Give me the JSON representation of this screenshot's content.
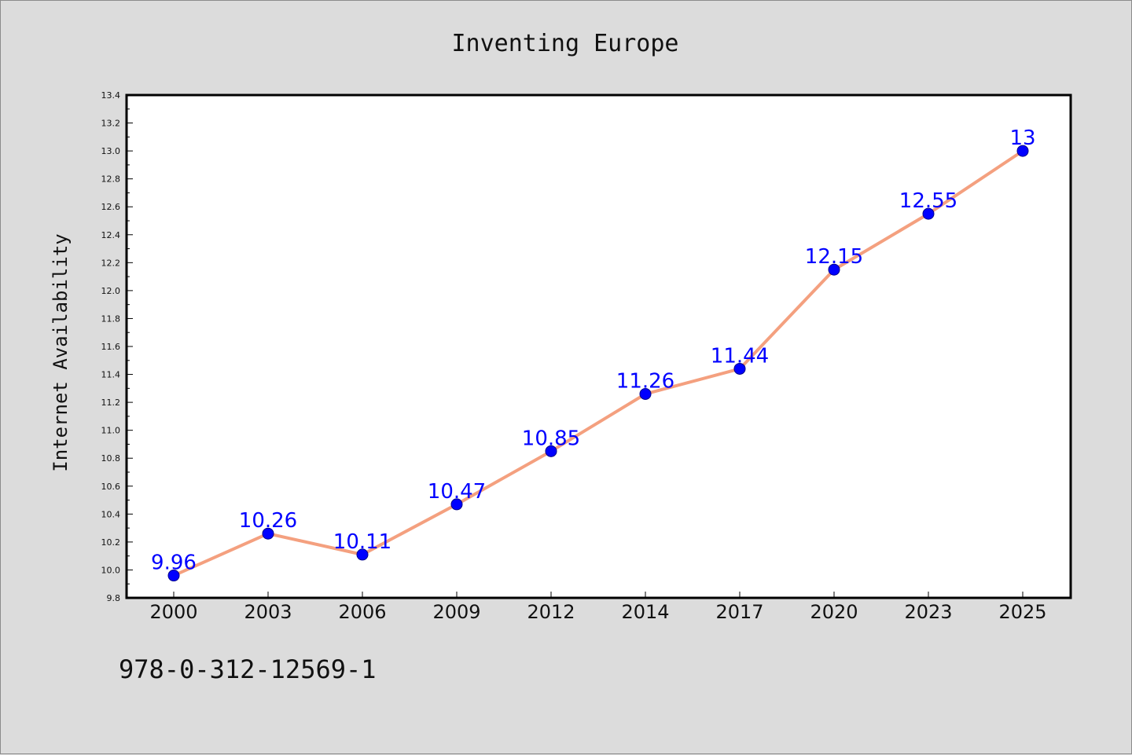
{
  "chart_data": {
    "type": "line",
    "title": "Inventing Europe",
    "xlabel": "",
    "ylabel": "Internet Availability",
    "categories": [
      "2000",
      "2003",
      "2006",
      "2009",
      "2012",
      "2014",
      "2017",
      "2020",
      "2023",
      "2025"
    ],
    "values": [
      9.96,
      10.26,
      10.11,
      10.47,
      10.85,
      11.26,
      11.44,
      12.15,
      12.55,
      13
    ],
    "data_labels": [
      "9.96",
      "10.26",
      "10.11",
      "10.47",
      "10.85",
      "11.26",
      "11.44",
      "12.15",
      "12.55",
      "13"
    ],
    "ylim": [
      9.8,
      13.4
    ],
    "yticks": [
      "9.8",
      "10.0",
      "10.2",
      "10.4",
      "10.6",
      "10.8",
      "11.0",
      "11.2",
      "11.4",
      "11.6",
      "11.8",
      "12.0",
      "12.2",
      "12.4",
      "12.6",
      "12.8",
      "13.0",
      "13.2",
      "13.4"
    ],
    "grid": false,
    "colors": {
      "line": "#f4a07f",
      "marker": "#0000ff",
      "label": "#0000ff",
      "plot_bg": "#ffffff",
      "page_bg": "#dcdcdc"
    }
  },
  "footer": {
    "isbn": "978-0-312-12569-1"
  }
}
